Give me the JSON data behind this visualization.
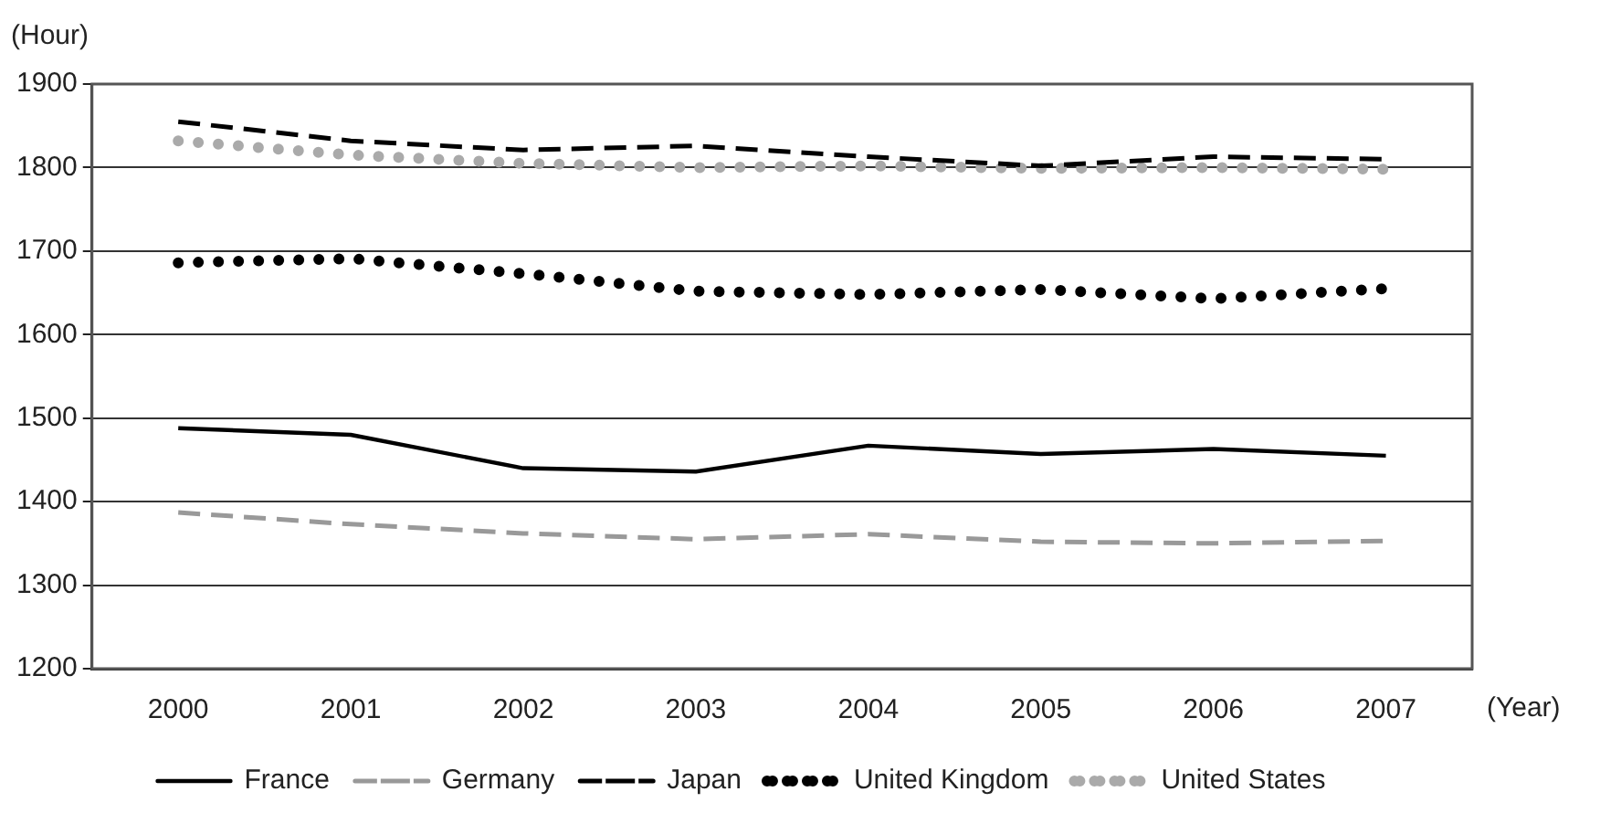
{
  "chart_data": {
    "type": "line",
    "xlabel": "(Year)",
    "ylabel": "(Hour)",
    "categories": [
      "2000",
      "2001",
      "2002",
      "2003",
      "2004",
      "2005",
      "2006",
      "2007"
    ],
    "series": [
      {
        "name": "France",
        "color": "#000000",
        "line_style": "solid",
        "values": [
          1488,
          1480,
          1440,
          1436,
          1467,
          1457,
          1463,
          1455
        ]
      },
      {
        "name": "Germany",
        "color": "#999999",
        "line_style": "dashed",
        "values": [
          1387,
          1373,
          1362,
          1355,
          1361,
          1352,
          1350,
          1353
        ]
      },
      {
        "name": "Japan",
        "color": "#000000",
        "line_style": "dashed",
        "values": [
          1855,
          1832,
          1821,
          1826,
          1813,
          1802,
          1813,
          1810
        ]
      },
      {
        "name": "United Kingdom",
        "color": "#000000",
        "line_style": "dotted",
        "values": [
          1686,
          1691,
          1673,
          1652,
          1648,
          1654,
          1643,
          1655
        ]
      },
      {
        "name": "United States",
        "color": "#aaaaaa",
        "line_style": "dotted",
        "values": [
          1832,
          1815,
          1805,
          1800,
          1802,
          1799,
          1800,
          1798
        ]
      }
    ],
    "ylim": [
      1200,
      1900
    ],
    "yticks": [
      1200,
      1300,
      1400,
      1500,
      1600,
      1700,
      1800,
      1900
    ],
    "grid": "y",
    "legend": "bottom",
    "marker": "none"
  }
}
